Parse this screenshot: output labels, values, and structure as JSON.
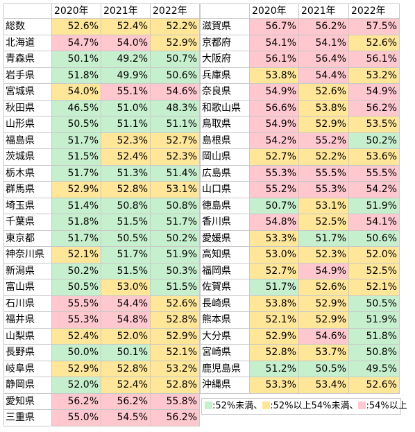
{
  "headers": [
    "2020年",
    "2021年",
    "2022年"
  ],
  "colors": {
    "low": "#c6efce",
    "mid": "#ffe699",
    "high": "#ffc7ce"
  },
  "left": [
    {
      "name": "総数",
      "v": [
        "52.6%",
        "52.4%",
        "52.2%"
      ],
      "c": [
        "mid",
        "mid",
        "mid"
      ]
    },
    {
      "name": "北海道",
      "v": [
        "54.7%",
        "54.0%",
        "52.9%"
      ],
      "c": [
        "high",
        "high",
        "mid"
      ]
    },
    {
      "name": "青森県",
      "v": [
        "50.1%",
        "49.2%",
        "50.7%"
      ],
      "c": [
        "low",
        "low",
        "low"
      ]
    },
    {
      "name": "岩手県",
      "v": [
        "51.8%",
        "49.9%",
        "50.6%"
      ],
      "c": [
        "low",
        "low",
        "low"
      ]
    },
    {
      "name": "宮城県",
      "v": [
        "54.0%",
        "55.1%",
        "54.6%"
      ],
      "c": [
        "mid",
        "high",
        "high"
      ]
    },
    {
      "name": "秋田県",
      "v": [
        "46.5%",
        "51.0%",
        "48.3%"
      ],
      "c": [
        "low",
        "low",
        "low"
      ]
    },
    {
      "name": "山形県",
      "v": [
        "50.5%",
        "51.1%",
        "51.1%"
      ],
      "c": [
        "low",
        "low",
        "low"
      ]
    },
    {
      "name": "福島県",
      "v": [
        "51.7%",
        "52.3%",
        "52.7%"
      ],
      "c": [
        "low",
        "mid",
        "mid"
      ]
    },
    {
      "name": "茨城県",
      "v": [
        "51.5%",
        "52.4%",
        "52.3%"
      ],
      "c": [
        "low",
        "mid",
        "mid"
      ]
    },
    {
      "name": "栃木県",
      "v": [
        "51.7%",
        "51.3%",
        "51.4%"
      ],
      "c": [
        "low",
        "low",
        "low"
      ]
    },
    {
      "name": "群馬県",
      "v": [
        "52.9%",
        "52.8%",
        "53.1%"
      ],
      "c": [
        "mid",
        "mid",
        "mid"
      ]
    },
    {
      "name": "埼玉県",
      "v": [
        "51.4%",
        "50.8%",
        "50.8%"
      ],
      "c": [
        "low",
        "low",
        "low"
      ]
    },
    {
      "name": "千葉県",
      "v": [
        "51.8%",
        "51.5%",
        "51.7%"
      ],
      "c": [
        "low",
        "low",
        "low"
      ]
    },
    {
      "name": "東京都",
      "v": [
        "51.7%",
        "50.5%",
        "50.2%"
      ],
      "c": [
        "low",
        "low",
        "low"
      ]
    },
    {
      "name": "神奈川県",
      "v": [
        "52.1%",
        "51.7%",
        "51.9%"
      ],
      "c": [
        "mid",
        "low",
        "low"
      ]
    },
    {
      "name": "新潟県",
      "v": [
        "50.2%",
        "51.5%",
        "50.3%"
      ],
      "c": [
        "low",
        "low",
        "low"
      ]
    },
    {
      "name": "富山県",
      "v": [
        "50.5%",
        "53.0%",
        "51.5%"
      ],
      "c": [
        "low",
        "mid",
        "low"
      ]
    },
    {
      "name": "石川県",
      "v": [
        "55.5%",
        "54.4%",
        "52.6%"
      ],
      "c": [
        "high",
        "high",
        "mid"
      ]
    },
    {
      "name": "福井県",
      "v": [
        "55.3%",
        "54.8%",
        "52.8%"
      ],
      "c": [
        "high",
        "high",
        "mid"
      ]
    },
    {
      "name": "山梨県",
      "v": [
        "52.4%",
        "52.0%",
        "52.9%"
      ],
      "c": [
        "mid",
        "mid",
        "mid"
      ]
    },
    {
      "name": "長野県",
      "v": [
        "50.0%",
        "50.1%",
        "52.1%"
      ],
      "c": [
        "low",
        "low",
        "mid"
      ]
    },
    {
      "name": "岐阜県",
      "v": [
        "52.9%",
        "52.8%",
        "53.2%"
      ],
      "c": [
        "mid",
        "mid",
        "mid"
      ]
    },
    {
      "name": "静岡県",
      "v": [
        "52.0%",
        "52.4%",
        "52.8%"
      ],
      "c": [
        "low",
        "mid",
        "mid"
      ]
    },
    {
      "name": "愛知県",
      "v": [
        "56.2%",
        "56.2%",
        "55.8%"
      ],
      "c": [
        "high",
        "high",
        "high"
      ]
    },
    {
      "name": "三重県",
      "v": [
        "55.0%",
        "54.5%",
        "56.2%"
      ],
      "c": [
        "high",
        "high",
        "high"
      ]
    }
  ],
  "right": [
    {
      "name": "滋賀県",
      "v": [
        "56.7%",
        "56.2%",
        "57.5%"
      ],
      "c": [
        "high",
        "high",
        "high"
      ]
    },
    {
      "name": "京都府",
      "v": [
        "54.1%",
        "54.1%",
        "52.6%"
      ],
      "c": [
        "high",
        "high",
        "mid"
      ]
    },
    {
      "name": "大阪府",
      "v": [
        "56.1%",
        "56.4%",
        "56.1%"
      ],
      "c": [
        "high",
        "high",
        "high"
      ]
    },
    {
      "name": "兵庫県",
      "v": [
        "53.8%",
        "54.4%",
        "53.2%"
      ],
      "c": [
        "mid",
        "high",
        "mid"
      ]
    },
    {
      "name": "奈良県",
      "v": [
        "54.9%",
        "52.6%",
        "54.9%"
      ],
      "c": [
        "high",
        "mid",
        "high"
      ]
    },
    {
      "name": "和歌山県",
      "v": [
        "56.6%",
        "53.8%",
        "56.2%"
      ],
      "c": [
        "high",
        "mid",
        "high"
      ]
    },
    {
      "name": "鳥取県",
      "v": [
        "54.9%",
        "52.9%",
        "53.5%"
      ],
      "c": [
        "high",
        "mid",
        "mid"
      ]
    },
    {
      "name": "島根県",
      "v": [
        "54.2%",
        "55.2%",
        "50.2%"
      ],
      "c": [
        "high",
        "high",
        "low"
      ]
    },
    {
      "name": "岡山県",
      "v": [
        "52.7%",
        "52.2%",
        "53.6%"
      ],
      "c": [
        "mid",
        "mid",
        "mid"
      ]
    },
    {
      "name": "広島県",
      "v": [
        "55.3%",
        "55.5%",
        "55.5%"
      ],
      "c": [
        "high",
        "high",
        "high"
      ]
    },
    {
      "name": "山口県",
      "v": [
        "55.2%",
        "55.3%",
        "54.2%"
      ],
      "c": [
        "high",
        "high",
        "high"
      ]
    },
    {
      "name": "徳島県",
      "v": [
        "50.7%",
        "53.1%",
        "51.9%"
      ],
      "c": [
        "low",
        "mid",
        "low"
      ]
    },
    {
      "name": "香川県",
      "v": [
        "54.8%",
        "52.5%",
        "54.1%"
      ],
      "c": [
        "high",
        "mid",
        "high"
      ]
    },
    {
      "name": "愛媛県",
      "v": [
        "53.3%",
        "51.7%",
        "50.6%"
      ],
      "c": [
        "mid",
        "low",
        "low"
      ]
    },
    {
      "name": "高知県",
      "v": [
        "53.0%",
        "52.3%",
        "52.0%"
      ],
      "c": [
        "mid",
        "mid",
        "mid"
      ]
    },
    {
      "name": "福岡県",
      "v": [
        "52.7%",
        "54.9%",
        "52.5%"
      ],
      "c": [
        "mid",
        "high",
        "mid"
      ]
    },
    {
      "name": "佐賀県",
      "v": [
        "51.7%",
        "52.6%",
        "52.1%"
      ],
      "c": [
        "low",
        "mid",
        "mid"
      ]
    },
    {
      "name": "長崎県",
      "v": [
        "53.8%",
        "52.9%",
        "50.5%"
      ],
      "c": [
        "mid",
        "mid",
        "low"
      ]
    },
    {
      "name": "熊本県",
      "v": [
        "52.1%",
        "52.9%",
        "51.9%"
      ],
      "c": [
        "mid",
        "mid",
        "low"
      ]
    },
    {
      "name": "大分県",
      "v": [
        "52.9%",
        "54.6%",
        "51.8%"
      ],
      "c": [
        "mid",
        "high",
        "low"
      ]
    },
    {
      "name": "宮崎県",
      "v": [
        "52.8%",
        "53.7%",
        "50.8%"
      ],
      "c": [
        "mid",
        "mid",
        "low"
      ]
    },
    {
      "name": "鹿児島県",
      "v": [
        "51.2%",
        "50.5%",
        "49.5%"
      ],
      "c": [
        "low",
        "low",
        "low"
      ]
    },
    {
      "name": "沖縄県",
      "v": [
        "53.3%",
        "53.4%",
        "52.6%"
      ],
      "c": [
        "mid",
        "mid",
        "mid"
      ]
    }
  ],
  "legend": {
    "low_label": ":52%未満、",
    "mid_label": ":52%以上54%未満、",
    "high_label": ":54%以上"
  }
}
